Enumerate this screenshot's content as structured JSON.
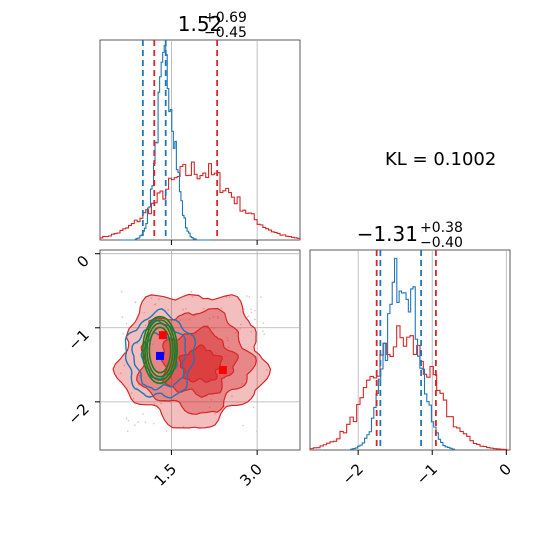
{
  "chart_data": {
    "type": "corner",
    "parameters": [
      "",
      ""
    ],
    "titles": [
      {
        "center": "1.52",
        "upper": "+0.69",
        "lower": "−0.45"
      },
      {
        "center": "−1.31",
        "upper": "+0.38",
        "lower": "−0.40"
      }
    ],
    "annotation": "KL = 0.1002",
    "x_range": [
      0.25,
      3.75
    ],
    "y_range": [
      -2.65,
      0.05
    ],
    "x_ticks": [
      {
        "value": 1.5,
        "label": "1.5"
      },
      {
        "value": 3.0,
        "label": "3.0"
      }
    ],
    "y_ticks": [
      {
        "value": 0,
        "label": "0"
      },
      {
        "value": -1,
        "label": "−1"
      },
      {
        "value": -2,
        "label": "−2"
      }
    ],
    "x2_ticks": [
      {
        "value": -2,
        "label": "−2"
      },
      {
        "value": -1,
        "label": "−1"
      },
      {
        "value": 0,
        "label": "0"
      }
    ],
    "grid": true,
    "series": [
      {
        "color": "#1f77b4",
        "style": "contour-lines",
        "marginal_p1": {
          "mean": 1.4,
          "sd": 0.16
        },
        "marginal_p2": {
          "mean": -1.4,
          "sd": 0.21
        },
        "quantiles_p1": [
          1.0,
          1.4
        ],
        "quantiles_p2": [
          -1.7,
          -1.15
        ],
        "point": [
          1.3,
          -1.38
        ]
      },
      {
        "color": "#d62728",
        "style": "filled-contours",
        "marginal_p1": {
          "mean": 1.95,
          "sd": 0.65
        },
        "marginal_p2": {
          "mean": -1.4,
          "sd": 0.42
        },
        "quantiles_p1": [
          1.2,
          2.3
        ],
        "quantiles_p2": [
          -1.75,
          -0.95
        ],
        "point": [
          1.35,
          -1.1
        ],
        "point2": [
          2.4,
          -1.57
        ]
      },
      {
        "color": "#1a7d1a",
        "style": "ellipses",
        "ellipse": {
          "cx": 1.3,
          "cy": -1.3,
          "rx": 0.3,
          "ry": 0.45
        }
      }
    ]
  }
}
